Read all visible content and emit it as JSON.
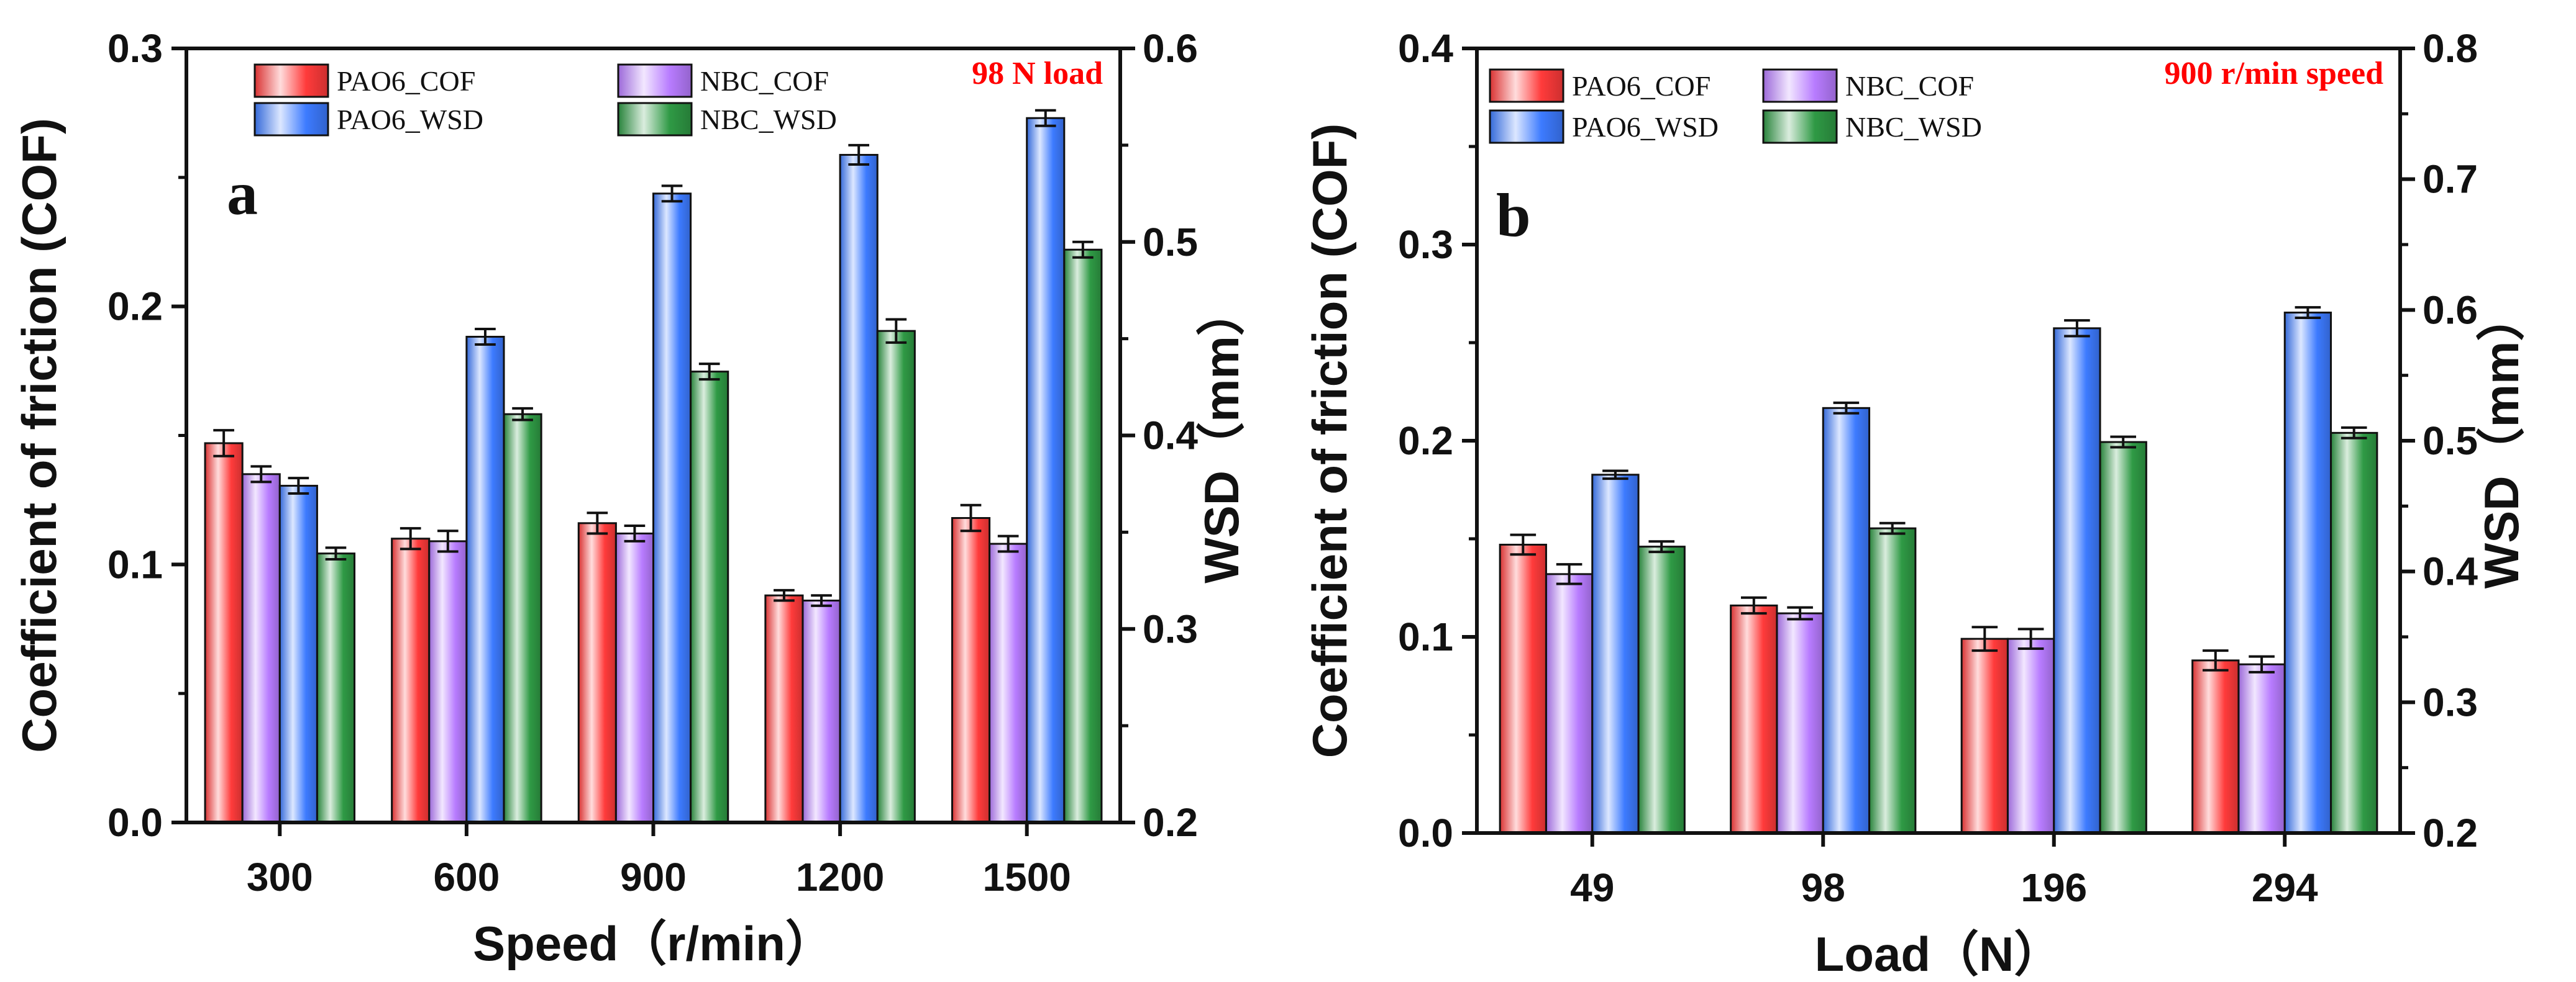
{
  "colors": {
    "PAO6_COF": "#ff3b3b",
    "NBC_COF": "#b87cff",
    "PAO6_WSD": "#3d7bff",
    "NBC_WSD": "#2f9a45",
    "annotation": "#ff0000"
  },
  "chart_data": [
    {
      "type": "bar",
      "panel_label": "a",
      "annotation": "98 N load",
      "xlabel": "Speed（r/min）",
      "ylabel_left": "Coefficient of friction (COF)",
      "ylabel_right": "WSD（mm）",
      "ylim_left": [
        0.0,
        0.3
      ],
      "ylim_right": [
        0.2,
        0.6
      ],
      "yticks_left": [
        "0.0",
        "0.1",
        "0.2",
        "0.3"
      ],
      "yticks_right": [
        "0.2",
        "0.3",
        "0.4",
        "0.5",
        "0.6"
      ],
      "legend_position": "top-left",
      "categories": [
        "300",
        "600",
        "900",
        "1200",
        "1500"
      ],
      "series": [
        {
          "name": "PAO6_COF",
          "axis": "left",
          "values": [
            0.147,
            0.11,
            0.116,
            0.088,
            0.118
          ],
          "errors": [
            0.005,
            0.004,
            0.004,
            0.002,
            0.005
          ]
        },
        {
          "name": "NBC_COF",
          "axis": "left",
          "values": [
            0.135,
            0.109,
            0.112,
            0.086,
            0.108
          ],
          "errors": [
            0.003,
            0.004,
            0.003,
            0.002,
            0.003
          ]
        },
        {
          "name": "PAO6_WSD",
          "axis": "right",
          "values": [
            0.374,
            0.451,
            0.525,
            0.545,
            0.564
          ],
          "errors": [
            0.004,
            0.004,
            0.004,
            0.005,
            0.004
          ]
        },
        {
          "name": "NBC_WSD",
          "axis": "right",
          "values": [
            0.339,
            0.411,
            0.433,
            0.454,
            0.496
          ],
          "errors": [
            0.003,
            0.003,
            0.004,
            0.006,
            0.004
          ]
        }
      ]
    },
    {
      "type": "bar",
      "panel_label": "b",
      "annotation": "900 r/min speed",
      "xlabel": "Load（N）",
      "ylabel_left": "Coefficient of friction (COF)",
      "ylabel_right": "WSD（mm）",
      "ylim_left": [
        0.0,
        0.4
      ],
      "ylim_right": [
        0.2,
        0.8
      ],
      "yticks_left": [
        "0.0",
        "0.1",
        "0.2",
        "0.3",
        "0.4"
      ],
      "yticks_right": [
        "0.2",
        "0.3",
        "0.4",
        "0.5",
        "0.6",
        "0.7",
        "0.8"
      ],
      "legend_position": "top-left",
      "categories": [
        "49",
        "98",
        "196",
        "294"
      ],
      "series": [
        {
          "name": "PAO6_COF",
          "axis": "left",
          "values": [
            0.147,
            0.116,
            0.099,
            0.088
          ],
          "errors": [
            0.005,
            0.004,
            0.006,
            0.005
          ]
        },
        {
          "name": "NBC_COF",
          "axis": "left",
          "values": [
            0.132,
            0.112,
            0.099,
            0.086
          ],
          "errors": [
            0.005,
            0.003,
            0.005,
            0.004
          ]
        },
        {
          "name": "PAO6_WSD",
          "axis": "right",
          "values": [
            0.474,
            0.525,
            0.586,
            0.598
          ],
          "errors": [
            0.003,
            0.004,
            0.006,
            0.004
          ]
        },
        {
          "name": "NBC_WSD",
          "axis": "right",
          "values": [
            0.419,
            0.433,
            0.499,
            0.506
          ],
          "errors": [
            0.004,
            0.004,
            0.004,
            0.004
          ]
        }
      ]
    }
  ]
}
